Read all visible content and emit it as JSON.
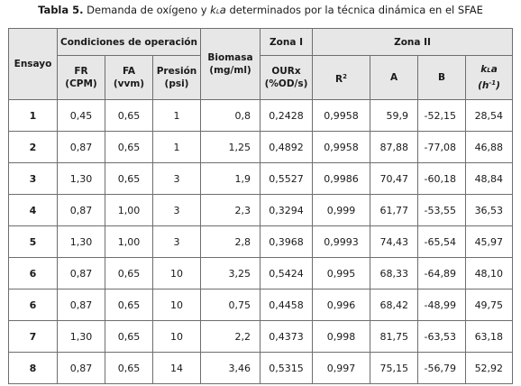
{
  "caption": {
    "label": "Tabla 5.",
    "text_before_var": " Demanda de oxígeno y ",
    "var_k": "k",
    "var_sub": "L",
    "var_a": "a",
    "text_after_var": " determinados por la técnica dinámica en el SFAE"
  },
  "headers": {
    "ensayo": "Ensayo",
    "condiciones": "Condiciones de operación",
    "fr": "FR",
    "fr_unit": "(CPM)",
    "fa": "FA",
    "fa_unit": "(vvm)",
    "presion": "Presión",
    "presion_unit": "(psi)",
    "biomasa": "Biomasa",
    "biomasa_unit": "(mg/ml)",
    "zona1": "Zona I",
    "ourx": "OURx",
    "ourx_unit": "(%OD/s)",
    "zona2": "Zona II",
    "r2_base": "R",
    "r2_sup": "2",
    "a": "A",
    "b": "B",
    "kla_k": "k",
    "kla_sub": "L",
    "kla_a": "a",
    "kla_unit_base": "(h",
    "kla_unit_sup": "-1",
    "kla_unit_end": ")"
  },
  "rows": [
    [
      "1",
      "0,45",
      "0,65",
      "1",
      "0,8",
      "0,2428",
      "0,9958",
      "59,9",
      "-52,15",
      "28,54"
    ],
    [
      "2",
      "0,87",
      "0,65",
      "1",
      "1,25",
      "0,4892",
      "0,9958",
      "87,88",
      "-77,08",
      "46,88"
    ],
    [
      "3",
      "1,30",
      "0,65",
      "3",
      "1,9",
      "0,5527",
      "0,9986",
      "70,47",
      "-60,18",
      "48,84"
    ],
    [
      "4",
      "0,87",
      "1,00",
      "3",
      "2,3",
      "0,3294",
      "0,999",
      "61,77",
      "-53,55",
      "36,53"
    ],
    [
      "5",
      "1,30",
      "1,00",
      "3",
      "2,8",
      "0,3968",
      "0,9993",
      "74,43",
      "-65,54",
      "45,97"
    ],
    [
      "6",
      "0,87",
      "0,65",
      "10",
      "3,25",
      "0,5424",
      "0,995",
      "68,33",
      "-64,89",
      "48,10"
    ],
    [
      "6",
      "0,87",
      "0,65",
      "10",
      "0,75",
      "0,4458",
      "0,996",
      "68,42",
      "-48,99",
      "49,75"
    ],
    [
      "7",
      "1,30",
      "0,65",
      "10",
      "2,2",
      "0,4373",
      "0,998",
      "81,75",
      "-63,53",
      "63,18"
    ],
    [
      "8",
      "0,87",
      "0,65",
      "14",
      "3,46",
      "0,5315",
      "0,997",
      "75,15",
      "-56,79",
      "52,92"
    ]
  ]
}
